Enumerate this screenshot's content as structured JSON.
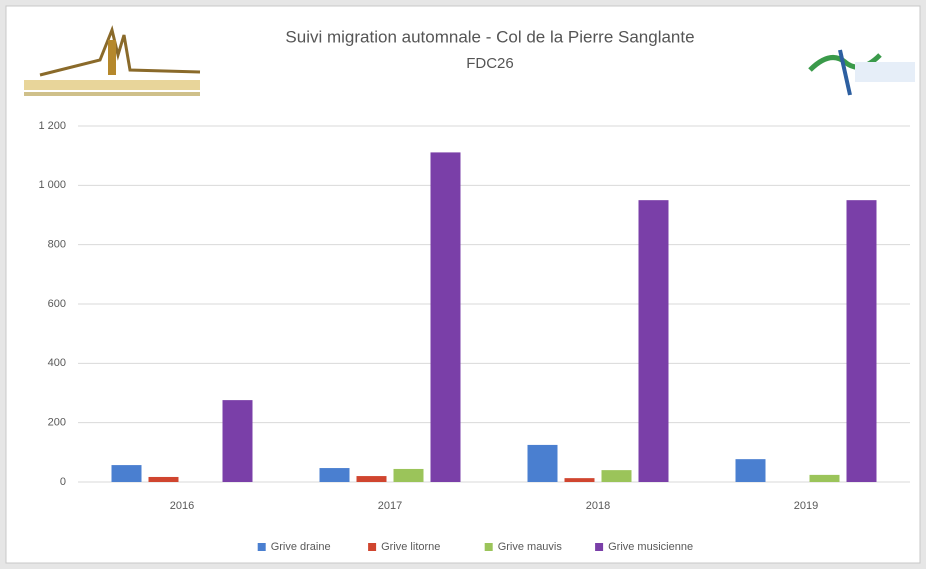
{
  "chart_data": {
    "type": "bar",
    "title": "Suivi migration automnale - Col de la Pierre Sanglante",
    "subtitle": "FDC26",
    "categories": [
      "2016",
      "2017",
      "2018",
      "2019"
    ],
    "series": [
      {
        "name": "Grive draine",
        "color": "#4a7fd0",
        "values": [
          57,
          47,
          125,
          77
        ]
      },
      {
        "name": "Grive litorne",
        "color": "#d0452f",
        "values": [
          17,
          20,
          13,
          0
        ]
      },
      {
        "name": "Grive mauvis",
        "color": "#9bc45a",
        "values": [
          0,
          44,
          40,
          24
        ]
      },
      {
        "name": "Grive musicienne",
        "color": "#7a3fa8",
        "values": [
          276,
          1111,
          950,
          950
        ]
      }
    ],
    "ylim": [
      0,
      1200
    ],
    "yticks": [
      0,
      200,
      400,
      600,
      800,
      {
        "value": 1000,
        "label": "1 000"
      },
      {
        "value": 1200,
        "label": "1 200"
      }
    ],
    "grid": true,
    "legend": "bottom"
  }
}
